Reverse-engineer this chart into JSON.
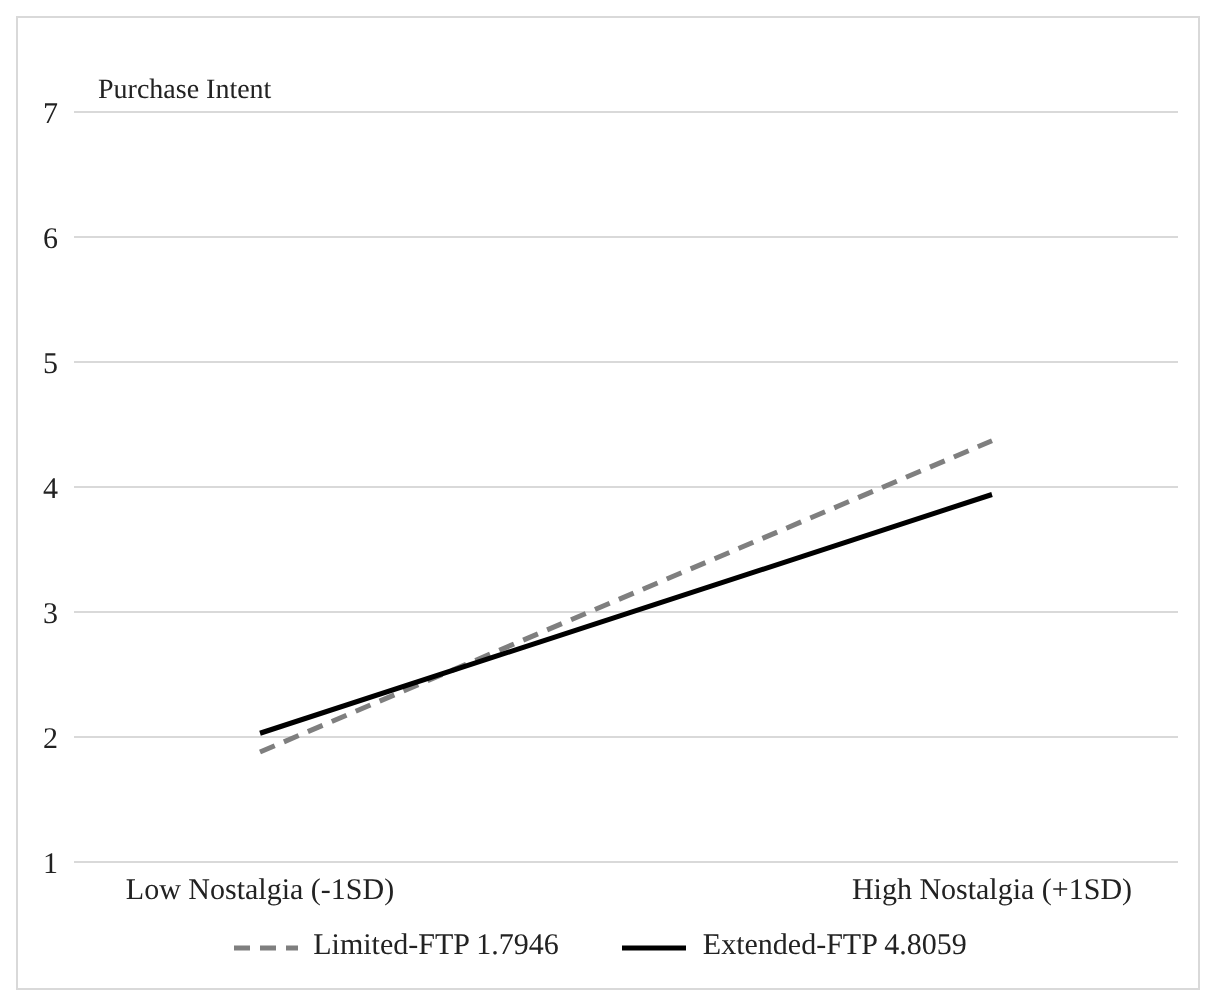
{
  "chart_data": {
    "type": "line",
    "ylabel": "Purchase Intent",
    "categories": [
      "Low Nostalgia (-1SD)",
      "High Nostalgia (+1SD)"
    ],
    "series": [
      {
        "name": "Limited-FTP 1.7946",
        "color": "#7f7f7f",
        "line_style": "dashed",
        "values": [
          1.88,
          4.37
        ]
      },
      {
        "name": "Extended-FTP 4.8059",
        "color": "#000000",
        "line_style": "solid",
        "values": [
          2.03,
          3.94
        ]
      }
    ],
    "ylim": [
      1,
      7
    ],
    "yticks": [
      1,
      2,
      3,
      4,
      5,
      6,
      7
    ],
    "grid": "y",
    "legend": "bottom",
    "marker": "none"
  }
}
